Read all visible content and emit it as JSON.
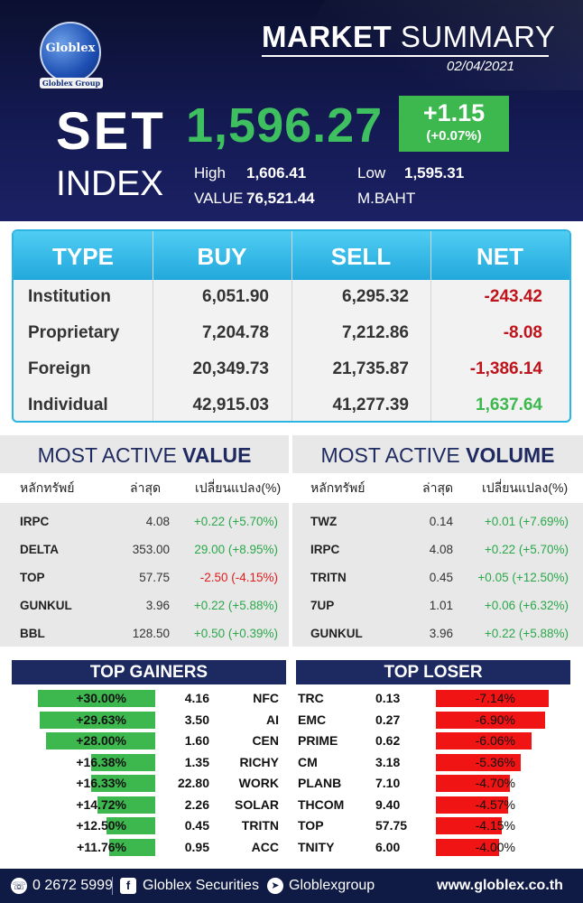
{
  "header": {
    "logo_text": "Globlex",
    "logo_sub": "Globlex Group",
    "title_bold": "MARKET",
    "title_rest": "SUMMARY",
    "date": "02/04/2021",
    "set_label": "SET",
    "index_label": "INDEX",
    "index_value": "1,596.27",
    "change": "+1.15",
    "change_pct": "(+0.07%)",
    "high_label": "High",
    "high_value": "1,606.41",
    "low_label": "Low",
    "low_value": "1,595.31",
    "value_label": "VALUE",
    "value_amount": "76,521.44",
    "unit": "M.BAHT",
    "colors": {
      "index_green": "#3fc060",
      "change_box": "#3db84f",
      "background": "#141a52"
    }
  },
  "investor_table": {
    "headers": [
      "TYPE",
      "BUY",
      "SELL",
      "NET"
    ],
    "rows": [
      {
        "type": "Institution",
        "buy": "6,051.90",
        "sell": "6,295.32",
        "net": "-243.42",
        "net_sign": "neg"
      },
      {
        "type": "Proprietary",
        "buy": "7,204.78",
        "sell": "7,212.86",
        "net": "-8.08",
        "net_sign": "neg"
      },
      {
        "type": "Foreign",
        "buy": "20,349.73",
        "sell": "21,735.87",
        "net": "-1,386.14",
        "net_sign": "neg"
      },
      {
        "type": "Individual",
        "buy": "42,915.03",
        "sell": "41,277.39",
        "net": "1,637.64",
        "net_sign": "pos"
      }
    ],
    "colors": {
      "header": "#22a8dc",
      "negative": "#c0141c",
      "positive": "#3db84f"
    }
  },
  "most_active_value": {
    "title_light": "MOST ACTIVE",
    "title_bold": "VALUE",
    "col_symbol": "หลักทรัพย์",
    "col_last": "ล่าสุด",
    "col_change": "เปลี่ยนแปลง(%)",
    "rows": [
      {
        "symbol": "IRPC",
        "last": "4.08",
        "change": "+0.22 (+5.70%)",
        "sign": "pos"
      },
      {
        "symbol": "DELTA",
        "last": "353.00",
        "change": "29.00 (+8.95%)",
        "sign": "pos"
      },
      {
        "symbol": "TOP",
        "last": "57.75",
        "change": "-2.50 (-4.15%)",
        "sign": "neg"
      },
      {
        "symbol": "GUNKUL",
        "last": "3.96",
        "change": "+0.22 (+5.88%)",
        "sign": "pos"
      },
      {
        "symbol": "BBL",
        "last": "128.50",
        "change": "+0.50 (+0.39%)",
        "sign": "pos"
      }
    ]
  },
  "most_active_volume": {
    "title_light": "MOST ACTIVE",
    "title_bold": "VOLUME",
    "col_symbol": "หลักทรัพย์",
    "col_last": "ล่าสุด",
    "col_change": "เปลี่ยนแปลง(%)",
    "rows": [
      {
        "symbol": "TWZ",
        "last": "0.14",
        "change": "+0.01 (+7.69%)",
        "sign": "pos"
      },
      {
        "symbol": "IRPC",
        "last": "4.08",
        "change": "+0.22 (+5.70%)",
        "sign": "pos"
      },
      {
        "symbol": "TRITN",
        "last": "0.45",
        "change": "+0.05 (+12.50%)",
        "sign": "pos"
      },
      {
        "symbol": "7UP",
        "last": "1.01",
        "change": "+0.06 (+6.32%)",
        "sign": "pos"
      },
      {
        "symbol": "GUNKUL",
        "last": "3.96",
        "change": "+0.22 (+5.88%)",
        "sign": "pos"
      }
    ]
  },
  "top_gainers": {
    "title": "TOP GAINERS",
    "rows": [
      {
        "pct": "+30.00%",
        "pct_value": 30.0,
        "last": "4.16",
        "symbol": "NFC"
      },
      {
        "pct": "+29.63%",
        "pct_value": 29.63,
        "last": "3.50",
        "symbol": "AI"
      },
      {
        "pct": "+28.00%",
        "pct_value": 28.0,
        "last": "1.60",
        "symbol": "CEN"
      },
      {
        "pct": "+16.38%",
        "pct_value": 16.38,
        "last": "1.35",
        "symbol": "RICHY"
      },
      {
        "pct": "+16.33%",
        "pct_value": 16.33,
        "last": "22.80",
        "symbol": "WORK"
      },
      {
        "pct": "+14.72%",
        "pct_value": 14.72,
        "last": "2.26",
        "symbol": "SOLAR"
      },
      {
        "pct": "+12.50%",
        "pct_value": 12.5,
        "last": "0.45",
        "symbol": "TRITN"
      },
      {
        "pct": "+11.76%",
        "pct_value": 11.76,
        "last": "0.95",
        "symbol": "ACC"
      }
    ]
  },
  "top_loser": {
    "title": "TOP LOSER",
    "rows": [
      {
        "symbol": "TRC",
        "last": "0.13",
        "pct": "-7.14%",
        "pct_value": 7.14
      },
      {
        "symbol": "EMC",
        "last": "0.27",
        "pct": "-6.90%",
        "pct_value": 6.9
      },
      {
        "symbol": "PRIME",
        "last": "0.62",
        "pct": "-6.06%",
        "pct_value": 6.06
      },
      {
        "symbol": "CM",
        "last": "3.18",
        "pct": "-5.36%",
        "pct_value": 5.36
      },
      {
        "symbol": "PLANB",
        "last": "7.10",
        "pct": "-4.70%",
        "pct_value": 4.7
      },
      {
        "symbol": "THCOM",
        "last": "9.40",
        "pct": "-4.57%",
        "pct_value": 4.57
      },
      {
        "symbol": "TOP",
        "last": "57.75",
        "pct": "-4.15%",
        "pct_value": 4.15
      },
      {
        "symbol": "TNITY",
        "last": "6.00",
        "pct": "-4.00%",
        "pct_value": 4.0
      }
    ]
  },
  "footer": {
    "phone": "0 2672 5999",
    "facebook": "Globlex Securities",
    "telegram": "Globlexgroup",
    "website": "www.globlex.co.th",
    "icons": [
      "phone-icon",
      "facebook-icon",
      "telegram-icon"
    ]
  }
}
